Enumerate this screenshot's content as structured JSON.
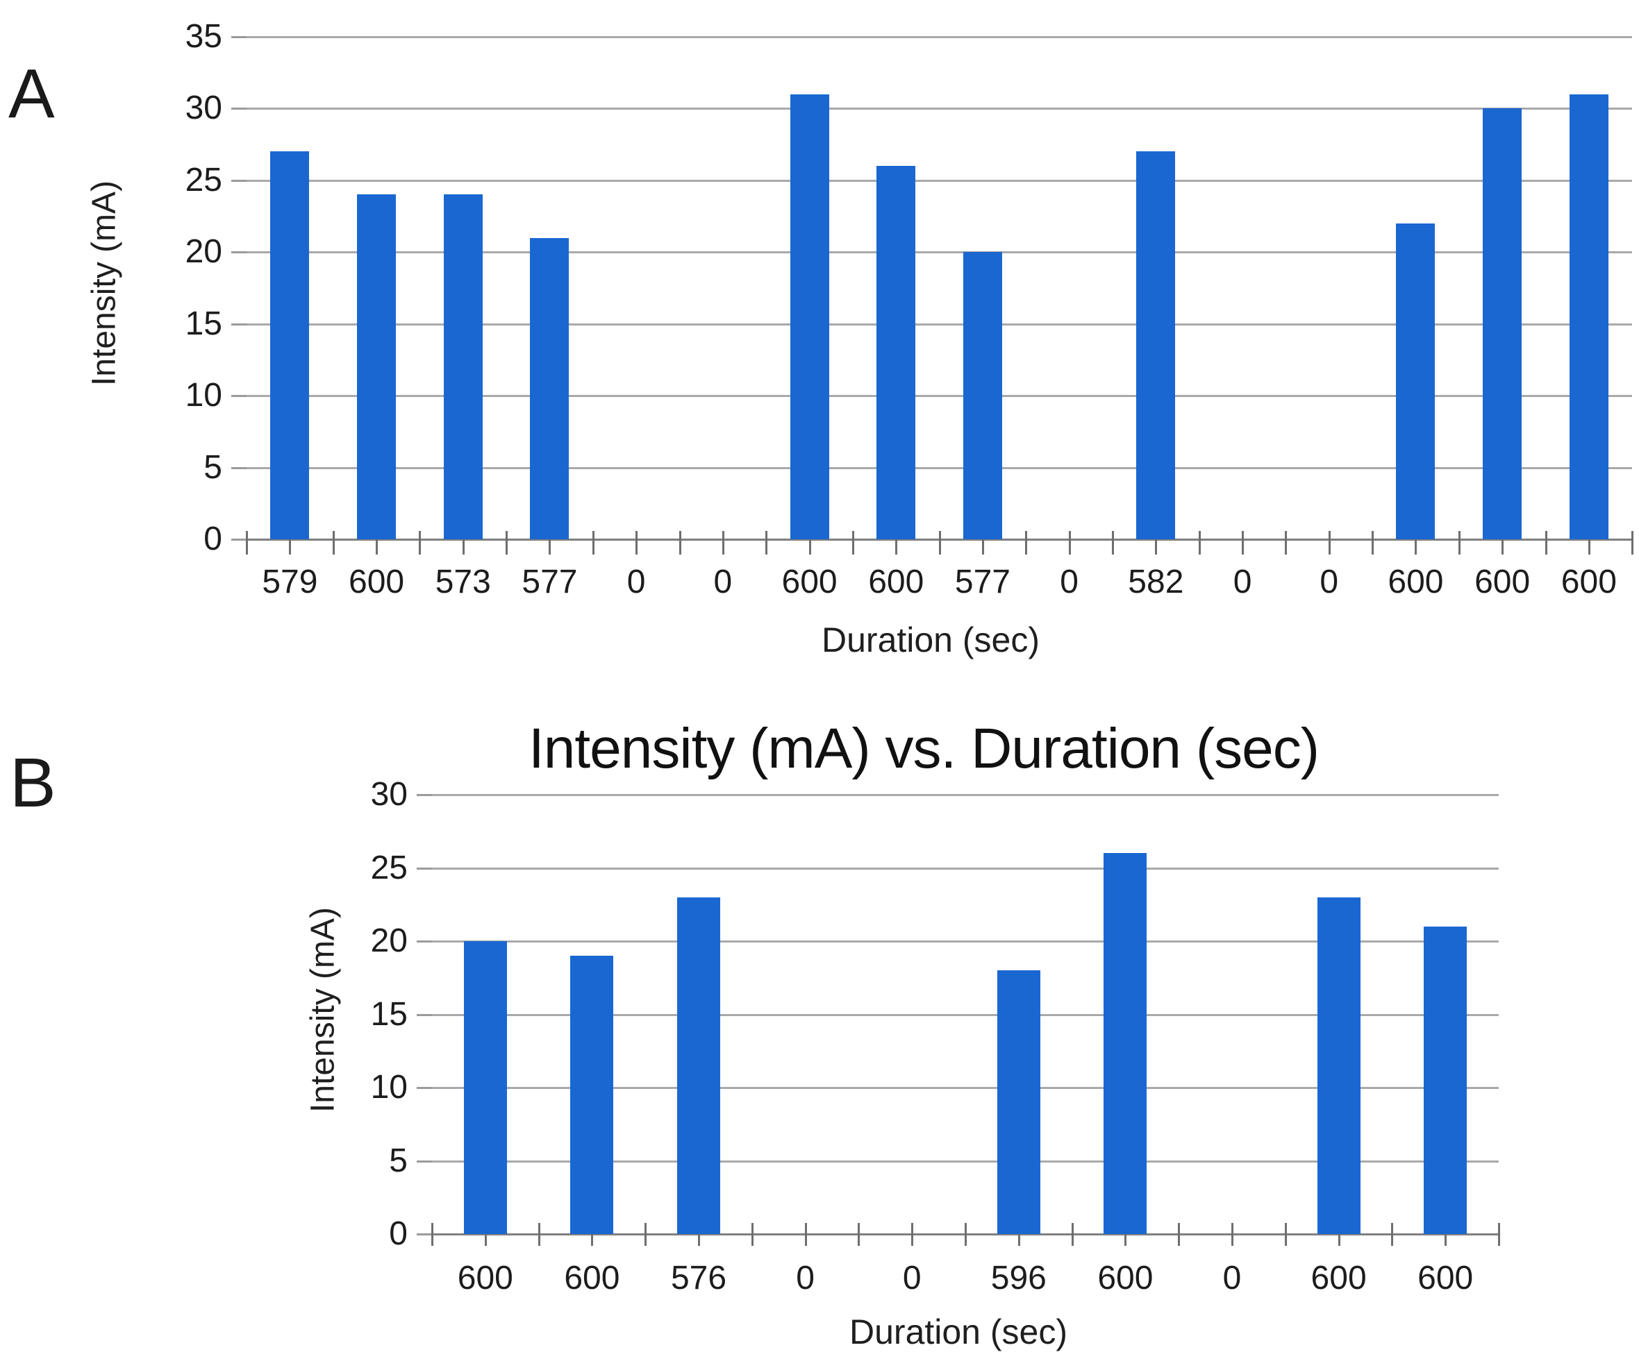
{
  "chart_data": [
    {
      "type": "bar",
      "panel_label": "A",
      "title": "",
      "xlabel": "Duration (sec)",
      "ylabel": "Intensity (mA)",
      "categories": [
        "579",
        "600",
        "573",
        "577",
        "0",
        "0",
        "600",
        "600",
        "577",
        "0",
        "582",
        "0",
        "0",
        "600",
        "600",
        "600"
      ],
      "values": [
        27,
        24,
        24,
        21,
        0,
        0,
        31,
        26,
        20,
        0,
        27,
        0,
        0,
        22,
        30,
        31
      ],
      "ylim": [
        0,
        35
      ],
      "ystep": 5,
      "y_ticks": [
        "0",
        "5",
        "10",
        "15",
        "20",
        "25",
        "30",
        "35"
      ],
      "grid": "horizontal",
      "legend": "none"
    },
    {
      "type": "bar",
      "panel_label": "B",
      "title": "Intensity (mA) vs. Duration (sec)",
      "xlabel": "Duration (sec)",
      "ylabel": "Intensity (mA)",
      "categories": [
        "600",
        "600",
        "576",
        "0",
        "0",
        "596",
        "600",
        "0",
        "600",
        "600"
      ],
      "values": [
        20,
        19,
        23,
        0,
        0,
        18,
        26,
        0,
        23,
        21
      ],
      "ylim": [
        0,
        30
      ],
      "ystep": 5,
      "y_ticks": [
        "0",
        "5",
        "10",
        "15",
        "20",
        "25",
        "30"
      ],
      "grid": "horizontal",
      "legend": "none"
    }
  ],
  "colors": {
    "bar": "#1a67d2",
    "gridline": "#a9a9a9",
    "axis": "#7f7f7f",
    "text": "#1c1c1c"
  }
}
